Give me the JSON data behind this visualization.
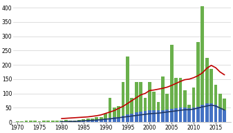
{
  "years": [
    1970,
    1971,
    1972,
    1973,
    1974,
    1975,
    1976,
    1977,
    1978,
    1979,
    1980,
    1981,
    1982,
    1983,
    1984,
    1985,
    1986,
    1987,
    1988,
    1989,
    1990,
    1991,
    1992,
    1993,
    1994,
    1995,
    1996,
    1997,
    1998,
    1999,
    2000,
    2001,
    2002,
    2003,
    2004,
    2005,
    2006,
    2007,
    2008,
    2009,
    2010,
    2011,
    2012,
    2013,
    2014,
    2015,
    2016,
    2017
  ],
  "green_bars": [
    3,
    3,
    5,
    4,
    4,
    2,
    4,
    4,
    4,
    5,
    5,
    7,
    5,
    5,
    8,
    10,
    12,
    13,
    16,
    18,
    30,
    85,
    50,
    55,
    140,
    230,
    85,
    140,
    140,
    85,
    140,
    105,
    70,
    160,
    100,
    270,
    155,
    155,
    110,
    60,
    120,
    280,
    405,
    225,
    185,
    130,
    100,
    82
  ],
  "blue_bars": [
    1,
    1,
    1,
    1,
    1,
    1,
    1,
    1,
    1,
    1,
    2,
    3,
    3,
    3,
    4,
    5,
    6,
    7,
    8,
    9,
    12,
    14,
    16,
    18,
    22,
    27,
    30,
    34,
    36,
    38,
    40,
    40,
    40,
    42,
    44,
    46,
    48,
    50,
    50,
    48,
    50,
    54,
    60,
    64,
    64,
    60,
    47,
    40
  ],
  "red_line": [
    null,
    null,
    null,
    null,
    null,
    null,
    null,
    null,
    null,
    null,
    12,
    13,
    14,
    15,
    16,
    17,
    18,
    20,
    22,
    25,
    30,
    35,
    40,
    48,
    55,
    65,
    75,
    85,
    95,
    100,
    110,
    112,
    115,
    118,
    122,
    128,
    135,
    142,
    148,
    150,
    155,
    162,
    172,
    188,
    198,
    190,
    175,
    165
  ],
  "black_line": [
    null,
    null,
    null,
    null,
    null,
    null,
    null,
    null,
    null,
    null,
    1,
    1,
    2,
    2,
    3,
    4,
    5,
    6,
    7,
    8,
    10,
    11,
    13,
    15,
    17,
    19,
    21,
    23,
    25,
    27,
    29,
    30,
    31,
    33,
    35,
    37,
    39,
    41,
    43,
    43,
    45,
    49,
    53,
    56,
    59,
    56,
    49,
    42
  ],
  "green_color": "#6ab04c",
  "blue_color": "#4472c4",
  "red_color": "#c00000",
  "black_color": "#1f3864",
  "bg_color": "#ffffff",
  "grid_color": "#d0d0d0",
  "xlim": [
    1969.0,
    2018.5
  ],
  "ylim": [
    0,
    420
  ],
  "yticks": [
    0,
    50,
    100,
    150,
    200,
    250,
    300,
    350,
    400
  ],
  "xticks": [
    1970,
    1975,
    1980,
    1985,
    1990,
    1995,
    2000,
    2005,
    2010,
    2015
  ],
  "bar_width": 0.75
}
